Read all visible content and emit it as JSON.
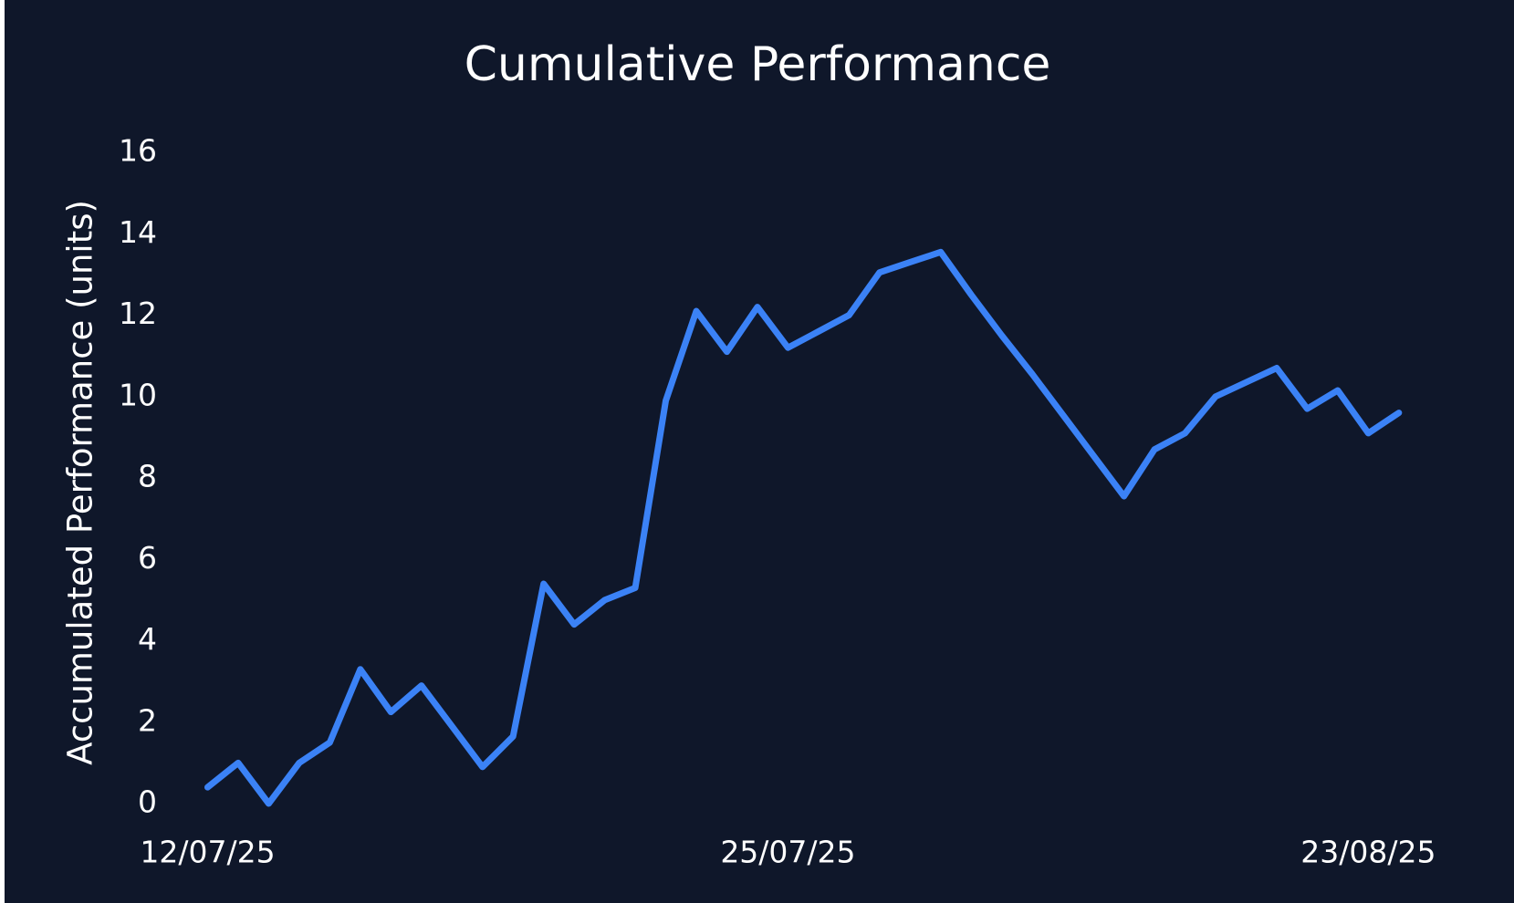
{
  "chart_data": {
    "type": "line",
    "title": "Cumulative Performance",
    "y_label": "Accumulated Performance (units)",
    "categories": [
      "12/07/25",
      null,
      null,
      null,
      null,
      null,
      null,
      null,
      null,
      null,
      null,
      null,
      null,
      null,
      null,
      null,
      null,
      null,
      null,
      "25/07/25",
      null,
      null,
      null,
      null,
      null,
      null,
      null,
      null,
      null,
      null,
      null,
      null,
      null,
      null,
      null,
      null,
      null,
      null,
      "23/08/25",
      null
    ],
    "series": [
      {
        "name": "Cumulative Performance",
        "color": "#3b82f6",
        "values": [
          0.4,
          1.0,
          0.0,
          1.0,
          1.5,
          3.3,
          2.25,
          2.9,
          1.9,
          0.9,
          1.65,
          5.4,
          4.4,
          5.0,
          5.3,
          9.9,
          12.1,
          11.1,
          12.2,
          11.2,
          11.6,
          12.0,
          13.05,
          13.3,
          13.55,
          12.5,
          11.5,
          10.55,
          9.55,
          8.55,
          7.55,
          8.7,
          9.1,
          10.0,
          10.35,
          10.7,
          9.7,
          10.15,
          9.1,
          9.6
        ]
      }
    ],
    "ylim": [
      0,
      16
    ],
    "yticks": [
      0,
      2,
      4,
      6,
      8,
      10,
      12,
      14,
      16
    ],
    "grid": false
  }
}
